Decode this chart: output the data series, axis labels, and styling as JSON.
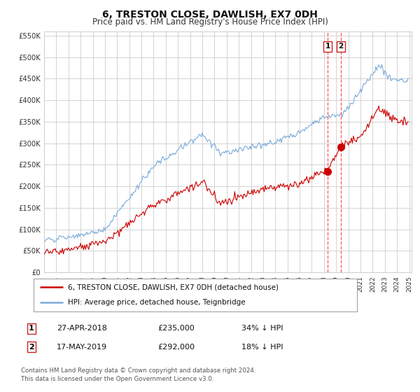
{
  "title": "6, TRESTON CLOSE, DAWLISH, EX7 0DH",
  "subtitle": "Price paid vs. HM Land Registry's House Price Index (HPI)",
  "legend_line1": "6, TRESTON CLOSE, DAWLISH, EX7 0DH (detached house)",
  "legend_line2": "HPI: Average price, detached house, Teignbridge",
  "sale1_date": "27-APR-2018",
  "sale1_price": "£235,000",
  "sale1_hpi": "34% ↓ HPI",
  "sale2_date": "17-MAY-2019",
  "sale2_price": "£292,000",
  "sale2_hpi": "18% ↓ HPI",
  "sale1_year": 2018.32,
  "sale2_year": 2019.38,
  "sale1_value": 235000,
  "sale2_value": 292000,
  "red_line_color": "#cc0000",
  "blue_line_color": "#7aabdb",
  "background_color": "#ffffff",
  "grid_color": "#cccccc",
  "dashed_line_color": "#ff5555",
  "ylim_max": 560000,
  "xstart": 1995,
  "xend": 2025,
  "footer_text": "Contains HM Land Registry data © Crown copyright and database right 2024.\nThis data is licensed under the Open Government Licence v3.0."
}
